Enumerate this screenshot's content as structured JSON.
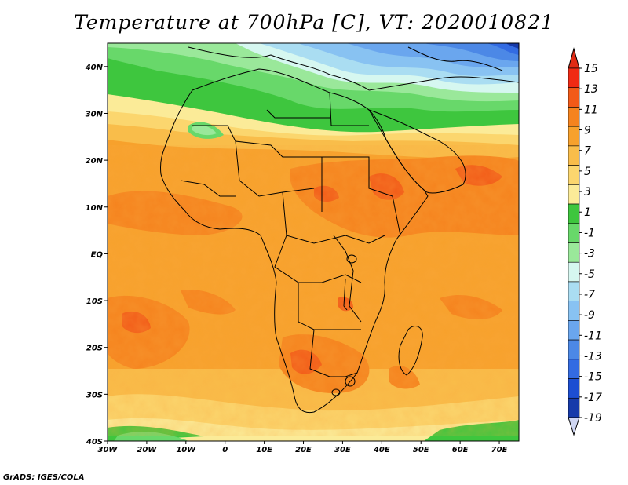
{
  "title": "Temperature at 700hPa [C], VT: 2020010821",
  "credit": "GrADS: IGES/COLA",
  "map": {
    "lon_range": [
      -30,
      75
    ],
    "lat_range": [
      -40,
      45
    ],
    "x_ticks": [
      {
        "lon": -30,
        "label": "30W"
      },
      {
        "lon": -20,
        "label": "20W"
      },
      {
        "lon": -10,
        "label": "10W"
      },
      {
        "lon": 0,
        "label": "0"
      },
      {
        "lon": 10,
        "label": "10E"
      },
      {
        "lon": 20,
        "label": "20E"
      },
      {
        "lon": 30,
        "label": "30E"
      },
      {
        "lon": 40,
        "label": "40E"
      },
      {
        "lon": 50,
        "label": "50E"
      },
      {
        "lon": 60,
        "label": "60E"
      },
      {
        "lon": 70,
        "label": "70E"
      }
    ],
    "y_ticks": [
      {
        "lat": 40,
        "label": "40N"
      },
      {
        "lat": 30,
        "label": "30N"
      },
      {
        "lat": 20,
        "label": "20N"
      },
      {
        "lat": 10,
        "label": "10N"
      },
      {
        "lat": 0,
        "label": "EQ"
      },
      {
        "lat": -10,
        "label": "10S"
      },
      {
        "lat": -20,
        "label": "20S"
      },
      {
        "lat": -30,
        "label": "30S"
      },
      {
        "lat": -40,
        "label": "40S"
      }
    ]
  },
  "colorbar": {
    "labels": [
      "15",
      "13",
      "11",
      "9",
      "7",
      "5",
      "3",
      "1",
      "-1",
      "-3",
      "-5",
      "-7",
      "-9",
      "-11",
      "-13",
      "-15",
      "-17",
      "-19"
    ],
    "colors": [
      "#f02a14",
      "#f25a18",
      "#f5831e",
      "#f7a12c",
      "#f9bd4a",
      "#fbd66e",
      "#fbeb98",
      "#3ec63e",
      "#68d86a",
      "#9ae89a",
      "#d6f7f0",
      "#aaddf2",
      "#88c2f2",
      "#6aa6ee",
      "#4c88e6",
      "#336be2",
      "#1c4ed2",
      "#163aaa",
      "#0c1c7e"
    ],
    "top_color": "#e02a14",
    "bottom_color": "#cfd6f2"
  }
}
